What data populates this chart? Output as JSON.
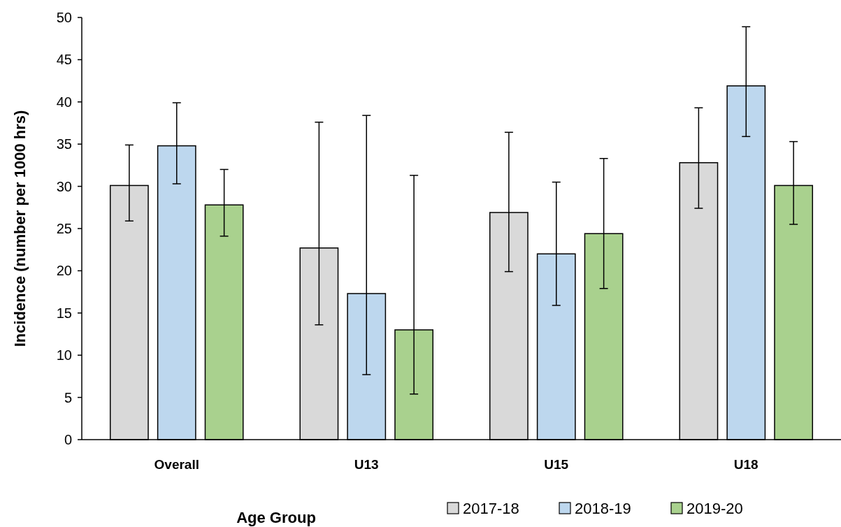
{
  "chart_data": {
    "type": "bar",
    "xlabel": "Age Group",
    "ylabel": "Incidence (number per 1000 hrs)",
    "categories": [
      "Overall",
      "U13",
      "U15",
      "U18"
    ],
    "series": [
      {
        "name": "2017-18",
        "color": "#d9d9d9",
        "values": [
          30.1,
          22.7,
          26.9,
          32.8
        ],
        "errors": [
          [
            25.9,
            34.9
          ],
          [
            13.6,
            37.6
          ],
          [
            19.9,
            36.4
          ],
          [
            27.4,
            39.3
          ]
        ]
      },
      {
        "name": "2018-19",
        "color": "#bdd7ee",
        "values": [
          34.8,
          17.3,
          22.0,
          41.9
        ],
        "errors": [
          [
            30.3,
            39.9
          ],
          [
            7.7,
            38.4
          ],
          [
            15.9,
            30.5
          ],
          [
            35.9,
            48.9
          ]
        ]
      },
      {
        "name": "2019-20",
        "color": "#a9d18e",
        "values": [
          27.8,
          13.0,
          24.4,
          30.1
        ],
        "errors": [
          [
            24.1,
            32.0
          ],
          [
            5.4,
            31.3
          ],
          [
            17.9,
            33.3
          ],
          [
            25.5,
            35.3
          ]
        ]
      }
    ],
    "ylim": [
      0,
      50
    ],
    "yticks": [
      0,
      5,
      10,
      15,
      20,
      25,
      30,
      35,
      40,
      45,
      50
    ],
    "grid": false,
    "legend": "bottom right"
  }
}
